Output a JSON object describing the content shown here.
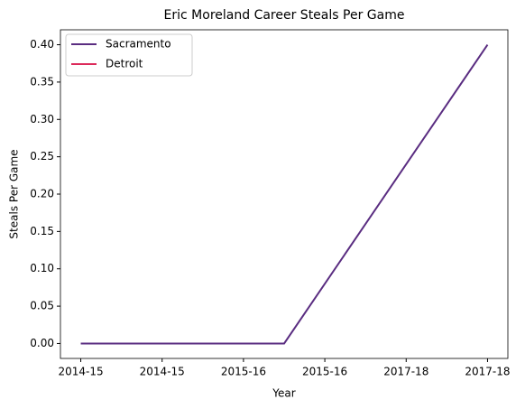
{
  "chart_data": {
    "type": "line",
    "title": "Eric Moreland Career Steals Per Game",
    "xlabel": "Year",
    "ylabel": "Steals Per Game",
    "x": [
      0,
      1,
      2
    ],
    "series": [
      {
        "name": "Sacramento",
        "color": "#5a2d81",
        "values": [
          0,
          0,
          0.4
        ]
      },
      {
        "name": "Detroit",
        "color": "#dc2a5a",
        "values": [
          null,
          0,
          null
        ]
      }
    ],
    "xlim": [
      -0.1,
      2.1
    ],
    "xticks": [
      {
        "value": 0,
        "label": "2014-15"
      },
      {
        "value": 0.4,
        "label": "2014-15"
      },
      {
        "value": 0.8,
        "label": "2015-16"
      },
      {
        "value": 1.2,
        "label": "2015-16"
      },
      {
        "value": 1.6,
        "label": "2017-18"
      },
      {
        "value": 2.0,
        "label": "2017-18"
      }
    ],
    "ylim": [
      -0.02,
      0.42
    ],
    "yticks": [
      {
        "value": 0,
        "label": "0.00"
      },
      {
        "value": 0.05,
        "label": "0.05"
      },
      {
        "value": 0.1,
        "label": "0.10"
      },
      {
        "value": 0.15,
        "label": "0.15"
      },
      {
        "value": 0.2,
        "label": "0.20"
      },
      {
        "value": 0.25,
        "label": "0.25"
      },
      {
        "value": 0.3,
        "label": "0.30"
      },
      {
        "value": 0.35,
        "label": "0.35"
      },
      {
        "value": 0.4,
        "label": "0.40"
      }
    ],
    "legend": "upper left"
  }
}
